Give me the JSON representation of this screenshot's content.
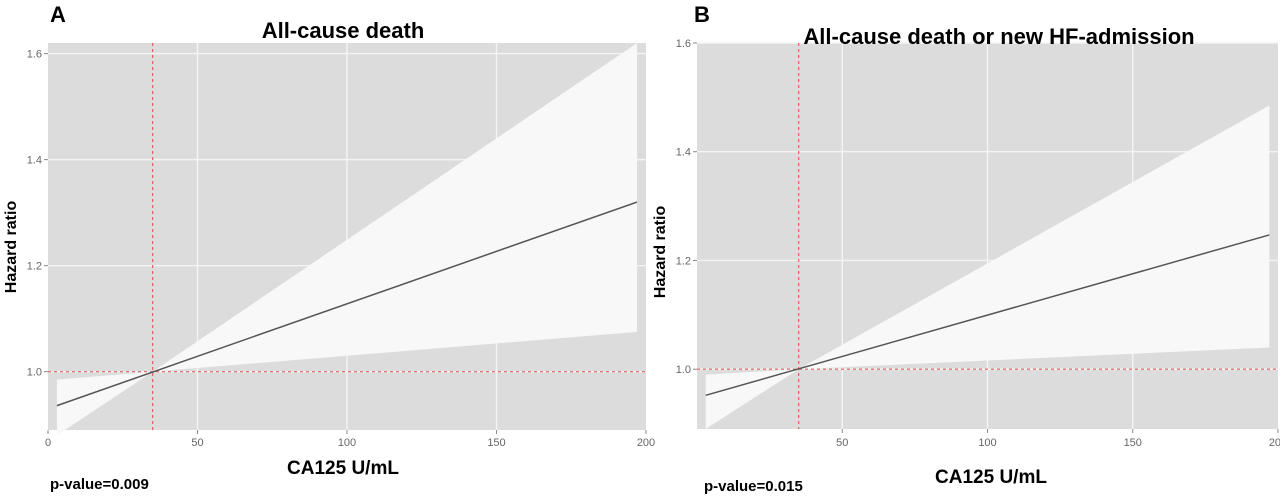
{
  "chart_data": [
    {
      "panel": "A",
      "type": "line",
      "title": "All-cause death",
      "xlabel": "CA125 U/mL",
      "ylabel": "Hazard ratio",
      "xlim": [
        0,
        200
      ],
      "ylim": [
        0.89,
        1.62
      ],
      "xticks": [
        0,
        50,
        100,
        150,
        200
      ],
      "yticks": [
        1.0,
        1.2,
        1.4,
        1.6
      ],
      "ytick_labels": [
        "1.0",
        "1.2",
        "1.4",
        "1.6"
      ],
      "grid": true,
      "reference": {
        "x": 35,
        "y": 1.0
      },
      "series": [
        {
          "name": "Hazard ratio",
          "x": [
            3,
            197
          ],
          "y": [
            0.936,
            1.32
          ]
        },
        {
          "name": "CI upper",
          "x": [
            3,
            35,
            197
          ],
          "y": [
            0.985,
            1.0,
            1.62
          ]
        },
        {
          "name": "CI lower",
          "x": [
            3,
            35,
            197
          ],
          "y": [
            0.88,
            1.0,
            1.075
          ]
        }
      ],
      "annotation": "p-value=0.009"
    },
    {
      "panel": "B",
      "type": "line",
      "title": "All-cause death or new HF-admission",
      "xlabel": "CA125 U/mL",
      "ylabel": "Hazard ratio",
      "xlim": [
        0,
        200
      ],
      "ylim": [
        0.89,
        1.6
      ],
      "xticks": [
        50,
        100,
        150,
        200
      ],
      "yticks": [
        1.0,
        1.2,
        1.4,
        1.6
      ],
      "ytick_labels": [
        "1.0",
        "1.2",
        "1.4",
        "1.6"
      ],
      "grid": true,
      "reference": {
        "x": 35,
        "y": 1.0
      },
      "series": [
        {
          "name": "Hazard ratio",
          "x": [
            3,
            197
          ],
          "y": [
            0.952,
            1.247
          ]
        },
        {
          "name": "CI upper",
          "x": [
            3,
            35,
            197
          ],
          "y": [
            0.99,
            1.0,
            1.485
          ]
        },
        {
          "name": "CI lower",
          "x": [
            3,
            35,
            197
          ],
          "y": [
            0.89,
            1.0,
            1.04
          ]
        }
      ],
      "annotation": "p-value=0.015"
    }
  ],
  "colors": {
    "panel_bg": "#dcdcdc",
    "ci_band": "#f8f8f8",
    "line": "#555555",
    "grid": "#f4f4f4",
    "reference": "#e06060"
  }
}
